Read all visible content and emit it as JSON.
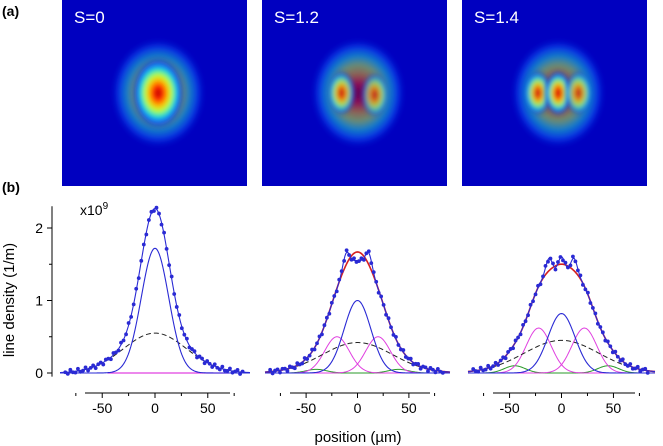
{
  "panel_a_label": "(a)",
  "panel_b_label": "(b)",
  "images": [
    {
      "label": "S=0",
      "blobs": [
        [
          0.0,
          0.0,
          1.0
        ]
      ]
    },
    {
      "label": "S=1.2",
      "blobs": [
        [
          -0.09,
          0.0,
          0.78
        ],
        [
          0.09,
          0.01,
          0.62
        ]
      ]
    },
    {
      "label": "S=1.4",
      "blobs": [
        [
          -0.11,
          0.0,
          0.85
        ],
        [
          0.0,
          0.0,
          0.92
        ],
        [
          0.11,
          0.0,
          0.7
        ]
      ]
    }
  ],
  "chart_data": {
    "type": "line",
    "xlabel": "position (µm)",
    "ylabel": "line density (1/m)",
    "y_multiplier": "x10",
    "y_exponent": "9",
    "yticks": [
      "0",
      "1",
      "2"
    ],
    "ylim": [
      -0.05,
      2.3
    ],
    "xlim": [
      -90,
      90
    ],
    "xticks": [
      "-50",
      "0",
      "50"
    ],
    "colors": {
      "data": "#2a2ad4",
      "fit": "#d62020",
      "outer": "#e040e0",
      "thermal": "#222222",
      "green": "#2a9a2a",
      "center": "#2a2ad4"
    },
    "panels": [
      {
        "label": "S=0",
        "components": [
          {
            "name": "center",
            "amp": 1.72,
            "x0": 0,
            "sigma": 13
          },
          {
            "name": "thermal",
            "amp": 0.55,
            "x0": 0,
            "sigma": 30,
            "dashed": true
          }
        ],
        "outer": [],
        "green": [],
        "fit": false,
        "points_from_total": true
      },
      {
        "label": "S=1.2",
        "components": [
          {
            "name": "center",
            "amp": 1.0,
            "x0": 0,
            "sigma": 13
          },
          {
            "name": "thermal",
            "amp": 0.42,
            "x0": 0,
            "sigma": 34,
            "dashed": true
          }
        ],
        "outer": [
          {
            "amp": 0.5,
            "x0": -20,
            "sigma": 12
          },
          {
            "amp": 0.5,
            "x0": 20,
            "sigma": 12
          }
        ],
        "green": [
          {
            "amp": 0.05,
            "x0": -40,
            "sigma": 10
          },
          {
            "amp": 0.05,
            "x0": 40,
            "sigma": 10
          }
        ],
        "fit": true,
        "peaks": [
          -11,
          11
        ]
      },
      {
        "label": "S=1.4",
        "components": [
          {
            "name": "center",
            "amp": 0.82,
            "x0": 0,
            "sigma": 13
          },
          {
            "name": "thermal",
            "amp": 0.45,
            "x0": 0,
            "sigma": 36,
            "dashed": true
          }
        ],
        "outer": [
          {
            "amp": 0.62,
            "x0": -22,
            "sigma": 12
          },
          {
            "amp": 0.62,
            "x0": 22,
            "sigma": 12
          }
        ],
        "green": [
          {
            "amp": 0.1,
            "x0": -45,
            "sigma": 10
          },
          {
            "amp": 0.1,
            "x0": 45,
            "sigma": 10
          }
        ],
        "fit": true,
        "peaks": [
          -12,
          0,
          12
        ]
      }
    ]
  }
}
